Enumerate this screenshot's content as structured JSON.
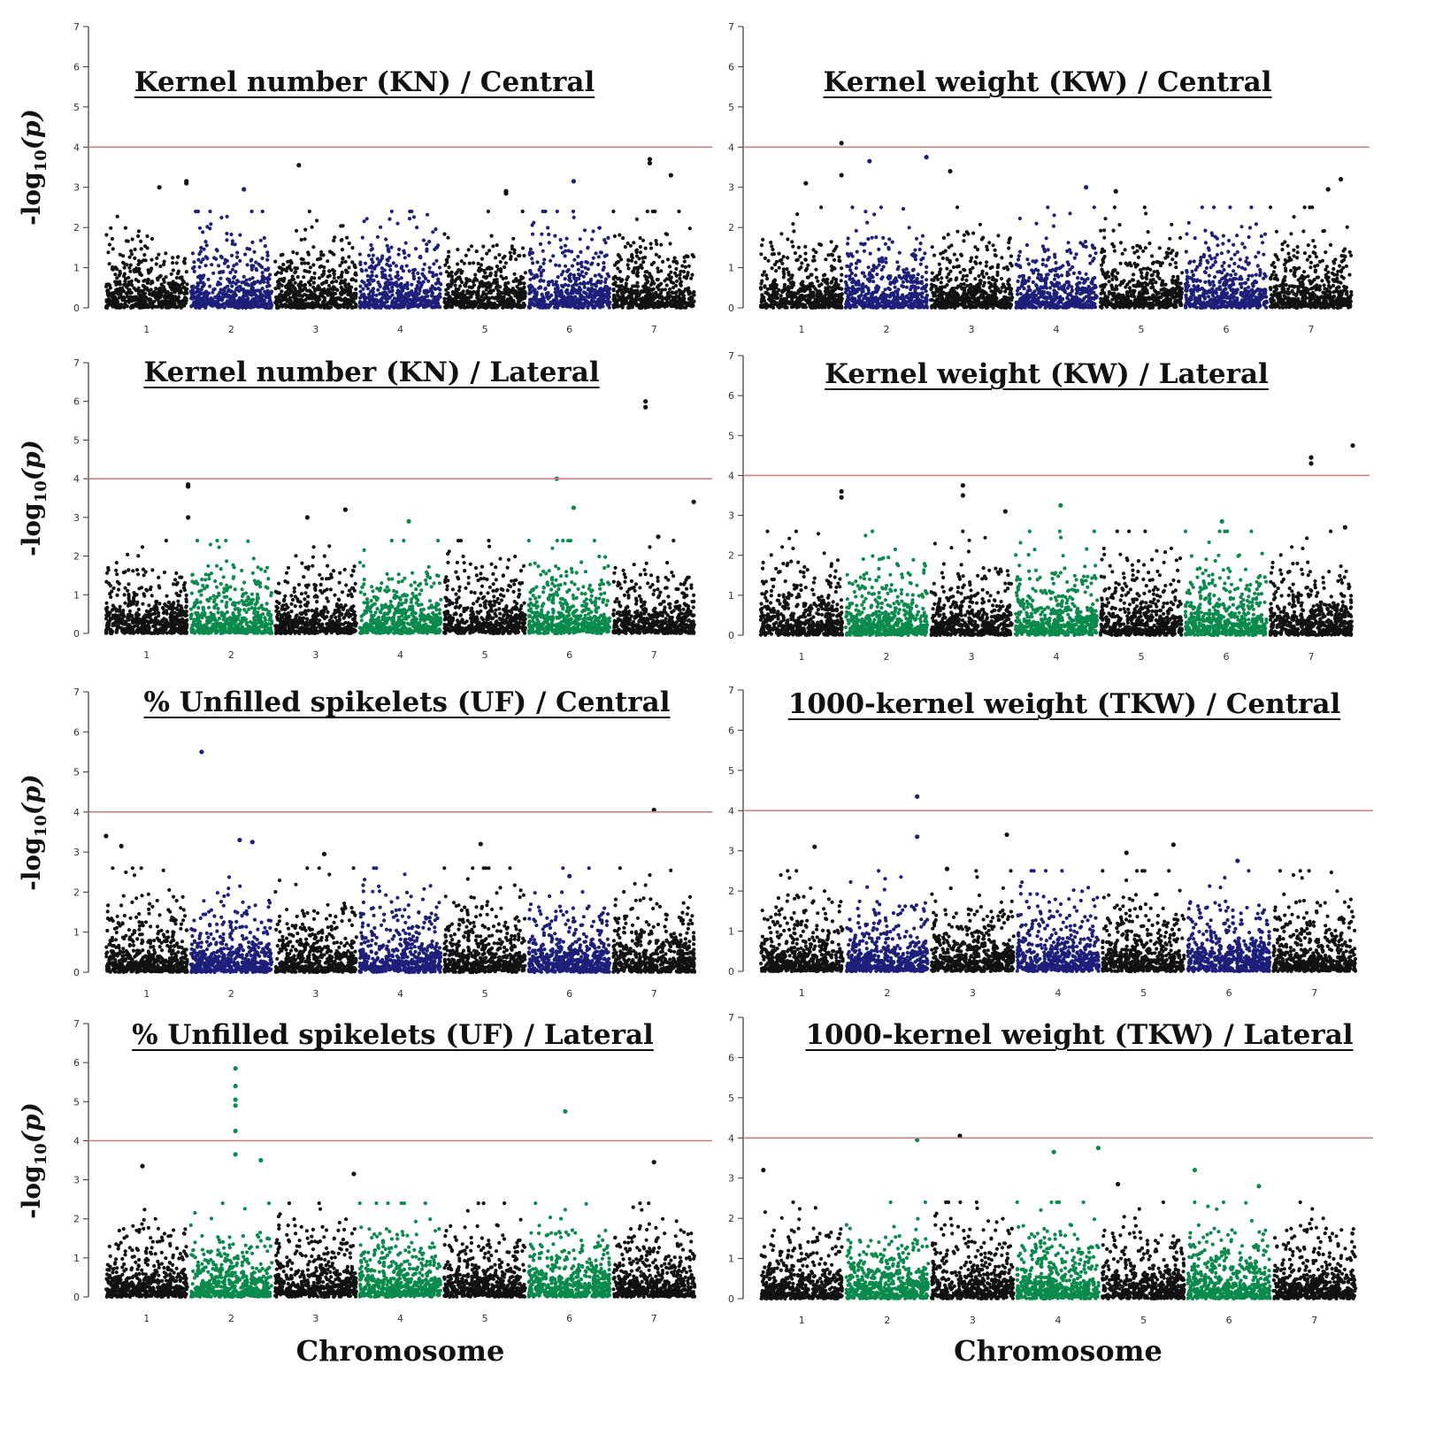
{
  "figure": {
    "ylabel_main": "-log",
    "ylabel_sub": "10",
    "ylabel_var": "(p)",
    "xlabel": "Chromosome",
    "colors": {
      "black": "#111111",
      "navy": "#1d1f7a",
      "green": "#0a8a4c",
      "threshold": "#c98080",
      "axis": "#333333"
    }
  },
  "chart_data": [
    {
      "type": "scatter",
      "title": "Kernel number (KN) / Central",
      "xlabel": "",
      "ylabel": "-log10(p)",
      "ylim": [
        0,
        7
      ],
      "yticks": [
        0,
        1,
        2,
        3,
        4,
        5,
        6,
        7
      ],
      "categories": [
        "1",
        "2",
        "3",
        "4",
        "5",
        "6",
        "7"
      ],
      "threshold": 4,
      "alt_color": "navy",
      "base_max": 2.4,
      "density": 1.0,
      "peaks": [
        {
          "chr": 1,
          "pos": 0.65,
          "y": 3.0
        },
        {
          "chr": 1,
          "pos": 0.97,
          "y": 3.15
        },
        {
          "chr": 1,
          "pos": 0.97,
          "y": 3.1
        },
        {
          "chr": 2,
          "pos": 0.65,
          "y": 2.95
        },
        {
          "chr": 3,
          "pos": 0.3,
          "y": 3.55
        },
        {
          "chr": 5,
          "pos": 0.75,
          "y": 2.9
        },
        {
          "chr": 5,
          "pos": 0.75,
          "y": 2.85
        },
        {
          "chr": 6,
          "pos": 0.55,
          "y": 3.15
        },
        {
          "chr": 7,
          "pos": 0.45,
          "y": 3.7
        },
        {
          "chr": 7,
          "pos": 0.45,
          "y": 3.6
        },
        {
          "chr": 7,
          "pos": 0.7,
          "y": 3.3
        }
      ]
    },
    {
      "type": "scatter",
      "title": "Kernel weight (KW) / Central",
      "xlabel": "",
      "ylabel": "-log10(p)",
      "ylim": [
        0,
        7
      ],
      "yticks": [
        0,
        1,
        2,
        3,
        4,
        5,
        6,
        7
      ],
      "categories": [
        "1",
        "2",
        "3",
        "4",
        "5",
        "6",
        "7"
      ],
      "threshold": 4,
      "alt_color": "navy",
      "base_max": 2.5,
      "density": 1.0,
      "peaks": [
        {
          "chr": 1,
          "pos": 0.97,
          "y": 4.1
        },
        {
          "chr": 1,
          "pos": 0.97,
          "y": 3.3
        },
        {
          "chr": 1,
          "pos": 0.55,
          "y": 3.1
        },
        {
          "chr": 2,
          "pos": 0.3,
          "y": 3.65
        },
        {
          "chr": 2,
          "pos": 0.97,
          "y": 3.75
        },
        {
          "chr": 3,
          "pos": 0.25,
          "y": 3.4
        },
        {
          "chr": 4,
          "pos": 0.85,
          "y": 3.0
        },
        {
          "chr": 5,
          "pos": 0.2,
          "y": 2.9
        },
        {
          "chr": 7,
          "pos": 0.7,
          "y": 2.95
        },
        {
          "chr": 7,
          "pos": 0.85,
          "y": 3.2
        }
      ]
    },
    {
      "type": "scatter",
      "title": "Kernel number (KN) / Lateral",
      "xlabel": "",
      "ylabel": "-log10(p)",
      "ylim": [
        0,
        7
      ],
      "yticks": [
        0,
        1,
        2,
        3,
        4,
        5,
        6,
        7
      ],
      "categories": [
        "1",
        "2",
        "3",
        "4",
        "5",
        "6",
        "7"
      ],
      "threshold": 4,
      "alt_color": "green",
      "base_max": 2.4,
      "density": 1.0,
      "peaks": [
        {
          "chr": 1,
          "pos": 0.99,
          "y": 3.85
        },
        {
          "chr": 1,
          "pos": 0.99,
          "y": 3.8
        },
        {
          "chr": 1,
          "pos": 0.99,
          "y": 3.0
        },
        {
          "chr": 3,
          "pos": 0.4,
          "y": 3.0
        },
        {
          "chr": 3,
          "pos": 0.85,
          "y": 3.2
        },
        {
          "chr": 4,
          "pos": 0.6,
          "y": 2.9
        },
        {
          "chr": 6,
          "pos": 0.35,
          "y": 4.0
        },
        {
          "chr": 6,
          "pos": 0.55,
          "y": 3.25
        },
        {
          "chr": 7,
          "pos": 0.4,
          "y": 6.0
        },
        {
          "chr": 7,
          "pos": 0.4,
          "y": 5.85
        },
        {
          "chr": 7,
          "pos": 0.55,
          "y": 2.5
        },
        {
          "chr": 7,
          "pos": 0.97,
          "y": 3.4
        }
      ]
    },
    {
      "type": "scatter",
      "title": "Kernel weight (KW) / Lateral",
      "xlabel": "",
      "ylabel": "-log10(p)",
      "ylim": [
        0,
        7
      ],
      "yticks": [
        0,
        1,
        2,
        3,
        4,
        5,
        6,
        7
      ],
      "categories": [
        "1",
        "2",
        "3",
        "4",
        "5",
        "6",
        "7"
      ],
      "threshold": 4,
      "alt_color": "green",
      "base_max": 2.6,
      "density": 1.0,
      "peaks": [
        {
          "chr": 1,
          "pos": 0.97,
          "y": 3.6
        },
        {
          "chr": 1,
          "pos": 0.97,
          "y": 3.45
        },
        {
          "chr": 3,
          "pos": 0.4,
          "y": 3.75
        },
        {
          "chr": 3,
          "pos": 0.4,
          "y": 3.5
        },
        {
          "chr": 3,
          "pos": 0.9,
          "y": 3.1
        },
        {
          "chr": 4,
          "pos": 0.55,
          "y": 3.25
        },
        {
          "chr": 6,
          "pos": 0.45,
          "y": 2.85
        },
        {
          "chr": 7,
          "pos": 0.5,
          "y": 4.45
        },
        {
          "chr": 7,
          "pos": 0.5,
          "y": 4.3
        },
        {
          "chr": 7,
          "pos": 0.99,
          "y": 4.75
        },
        {
          "chr": 7,
          "pos": 0.9,
          "y": 2.7
        }
      ]
    },
    {
      "type": "scatter",
      "title": "% Unfilled  spikelets  (UF) / Central",
      "xlabel": "",
      "ylabel": "-log10(p)",
      "ylim": [
        0,
        7
      ],
      "yticks": [
        0,
        1,
        2,
        3,
        4,
        5,
        6,
        7
      ],
      "categories": [
        "1",
        "2",
        "3",
        "4",
        "5",
        "6",
        "7"
      ],
      "threshold": 4,
      "alt_color": "navy",
      "base_max": 2.6,
      "density": 1.0,
      "peaks": [
        {
          "chr": 1,
          "pos": 0.02,
          "y": 3.4
        },
        {
          "chr": 1,
          "pos": 0.2,
          "y": 3.15
        },
        {
          "chr": 2,
          "pos": 0.15,
          "y": 5.5
        },
        {
          "chr": 2,
          "pos": 0.6,
          "y": 3.3
        },
        {
          "chr": 2,
          "pos": 0.75,
          "y": 3.25
        },
        {
          "chr": 3,
          "pos": 0.6,
          "y": 2.95
        },
        {
          "chr": 5,
          "pos": 0.45,
          "y": 3.2
        },
        {
          "chr": 6,
          "pos": 0.5,
          "y": 2.4
        },
        {
          "chr": 7,
          "pos": 0.5,
          "y": 4.05
        }
      ]
    },
    {
      "type": "scatter",
      "title": "1000-kernel weight (TKW) / Central",
      "xlabel": "",
      "ylabel": "-log10(p)",
      "ylim": [
        0,
        7
      ],
      "yticks": [
        0,
        1,
        2,
        3,
        4,
        5,
        6,
        7
      ],
      "categories": [
        "1",
        "2",
        "3",
        "4",
        "5",
        "6",
        "7"
      ],
      "threshold": 4,
      "alt_color": "navy",
      "base_max": 2.5,
      "density": 1.0,
      "peaks": [
        {
          "chr": 1,
          "pos": 0.65,
          "y": 3.1
        },
        {
          "chr": 2,
          "pos": 0.85,
          "y": 4.35
        },
        {
          "chr": 2,
          "pos": 0.85,
          "y": 3.35
        },
        {
          "chr": 3,
          "pos": 0.2,
          "y": 2.55
        },
        {
          "chr": 3,
          "pos": 0.9,
          "y": 3.4
        },
        {
          "chr": 5,
          "pos": 0.3,
          "y": 2.95
        },
        {
          "chr": 5,
          "pos": 0.85,
          "y": 3.15
        },
        {
          "chr": 6,
          "pos": 0.6,
          "y": 2.75
        }
      ]
    },
    {
      "type": "scatter",
      "title": "% Unfilled  spikelets (UF) / Lateral",
      "xlabel": "Chromosome",
      "ylabel": "-log10(p)",
      "ylim": [
        0,
        7
      ],
      "yticks": [
        0,
        1,
        2,
        3,
        4,
        5,
        6,
        7
      ],
      "categories": [
        "1",
        "2",
        "3",
        "4",
        "5",
        "6",
        "7"
      ],
      "threshold": 4,
      "alt_color": "green",
      "base_max": 2.4,
      "density": 1.0,
      "peaks": [
        {
          "chr": 1,
          "pos": 0.45,
          "y": 3.35
        },
        {
          "chr": 2,
          "pos": 0.55,
          "y": 5.85
        },
        {
          "chr": 2,
          "pos": 0.55,
          "y": 5.4
        },
        {
          "chr": 2,
          "pos": 0.55,
          "y": 5.05
        },
        {
          "chr": 2,
          "pos": 0.55,
          "y": 4.9
        },
        {
          "chr": 2,
          "pos": 0.55,
          "y": 4.25
        },
        {
          "chr": 2,
          "pos": 0.55,
          "y": 3.65
        },
        {
          "chr": 2,
          "pos": 0.85,
          "y": 3.5
        },
        {
          "chr": 3,
          "pos": 0.95,
          "y": 3.15
        },
        {
          "chr": 6,
          "pos": 0.45,
          "y": 4.75
        },
        {
          "chr": 7,
          "pos": 0.5,
          "y": 3.45
        }
      ]
    },
    {
      "type": "scatter",
      "title": "1000-kernel weight (TKW) / Lateral",
      "xlabel": "Chromosome",
      "ylabel": "-log10(p)",
      "ylim": [
        0,
        7
      ],
      "yticks": [
        0,
        1,
        2,
        3,
        4,
        5,
        6,
        7
      ],
      "categories": [
        "1",
        "2",
        "3",
        "4",
        "5",
        "6",
        "7"
      ],
      "threshold": 4,
      "alt_color": "green",
      "base_max": 2.4,
      "density": 1.0,
      "peaks": [
        {
          "chr": 1,
          "pos": 0.05,
          "y": 3.2
        },
        {
          "chr": 2,
          "pos": 0.85,
          "y": 3.95
        },
        {
          "chr": 3,
          "pos": 0.35,
          "y": 4.05
        },
        {
          "chr": 4,
          "pos": 0.45,
          "y": 3.65
        },
        {
          "chr": 4,
          "pos": 0.97,
          "y": 3.75
        },
        {
          "chr": 5,
          "pos": 0.2,
          "y": 2.85
        },
        {
          "chr": 6,
          "pos": 0.1,
          "y": 3.2
        },
        {
          "chr": 6,
          "pos": 0.85,
          "y": 2.8
        }
      ]
    }
  ]
}
